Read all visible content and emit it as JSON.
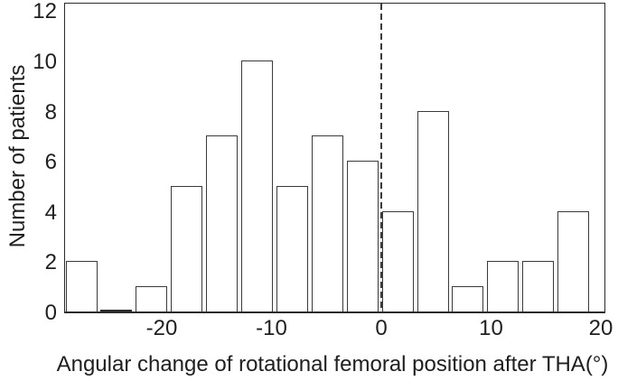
{
  "colors": {
    "ink": "#2b2b2b",
    "bar_fill": "#ffffff",
    "bar_stroke": "#3a3a3a",
    "background": "#ffffff"
  },
  "chart_data": {
    "type": "bar",
    "subtype": "histogram",
    "title": "",
    "xlabel": "Angular change of rotational femoral position after THA(°)",
    "ylabel": "Number of patients",
    "bin_edges": [
      -27,
      -24,
      -21,
      -18,
      -15,
      -12,
      -9,
      -6,
      -3,
      0,
      3,
      6,
      9,
      12,
      15,
      18
    ],
    "counts": [
      2,
      0,
      1,
      5,
      7,
      10,
      5,
      7,
      6,
      4,
      8,
      1,
      2,
      2,
      4
    ],
    "x_ticks": [
      -20,
      -10,
      0,
      10,
      20
    ],
    "y_ticks": [
      0,
      2,
      4,
      6,
      8,
      10,
      12
    ],
    "xlim": [
      -28.9,
      20.4
    ],
    "ylim": [
      0,
      12.4
    ],
    "reference_line_x": 0,
    "reference_line_style": "dashed",
    "grid": false,
    "legend": null
  }
}
